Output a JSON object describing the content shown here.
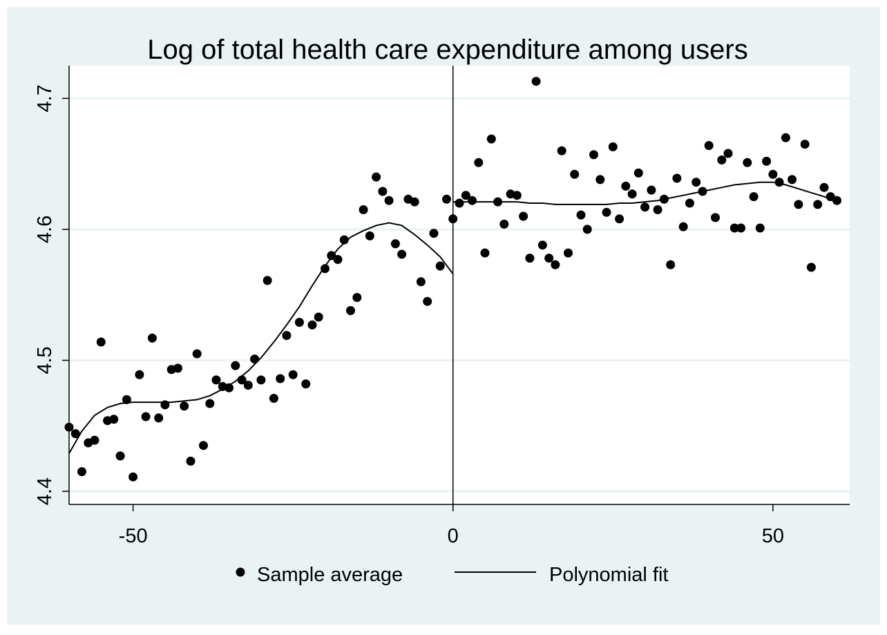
{
  "chart_data": {
    "type": "scatter",
    "title": "Log of total health care expenditure among users",
    "xlabel": "",
    "ylabel": "",
    "xlim": [
      -60,
      62
    ],
    "ylim": [
      4.39,
      4.725
    ],
    "xticks": [
      -50,
      0,
      50
    ],
    "xtick_labels": [
      "-50",
      "0",
      "50"
    ],
    "yticks": [
      4.4,
      4.5,
      4.6,
      4.7
    ],
    "ytick_labels": [
      "4.4",
      "4.5",
      "4.6",
      "4.7"
    ],
    "grid": "horizontal",
    "cutoff_line_x": 0,
    "legend_position": "bottom",
    "colors": {
      "frame_background": "#eaf2f3",
      "plot_background": "#ffffff",
      "gridline": "#eaf2f3",
      "marker": "#000000",
      "line": "#000000"
    },
    "series": [
      {
        "name": "Sample average",
        "type": "scatter",
        "x": [
          -60,
          -59,
          -58,
          -57,
          -56,
          -55,
          -54,
          -53,
          -52,
          -51,
          -50,
          -49,
          -48,
          -47,
          -46,
          -45,
          -44,
          -43,
          -42,
          -41,
          -40,
          -39,
          -38,
          -37,
          -36,
          -35,
          -34,
          -33,
          -32,
          -31,
          -30,
          -29,
          -28,
          -27,
          -26,
          -25,
          -24,
          -23,
          -22,
          -21,
          -20,
          -19,
          -18,
          -17,
          -16,
          -15,
          -14,
          -13,
          -12,
          -11,
          -10,
          -9,
          -8,
          -7,
          -6,
          -5,
          -4,
          -3,
          -2,
          -1,
          0,
          1,
          2,
          3,
          4,
          5,
          6,
          7,
          8,
          9,
          10,
          11,
          12,
          13,
          14,
          15,
          16,
          17,
          18,
          19,
          20,
          21,
          22,
          23,
          24,
          25,
          26,
          27,
          28,
          29,
          30,
          31,
          32,
          33,
          34,
          35,
          36,
          37,
          38,
          39,
          40,
          41,
          42,
          43,
          44,
          45,
          46,
          47,
          48,
          49,
          50,
          51,
          52,
          53,
          54,
          55,
          56,
          57,
          58,
          59,
          60
        ],
        "y": [
          4.449,
          4.444,
          4.415,
          4.437,
          4.439,
          4.514,
          4.454,
          4.455,
          4.427,
          4.47,
          4.411,
          4.489,
          4.457,
          4.517,
          4.456,
          4.466,
          4.493,
          4.494,
          4.465,
          4.423,
          4.505,
          4.435,
          4.467,
          4.485,
          4.48,
          4.479,
          4.496,
          4.485,
          4.481,
          4.501,
          4.485,
          4.561,
          4.471,
          4.486,
          4.519,
          4.489,
          4.529,
          4.482,
          4.527,
          4.533,
          4.57,
          4.58,
          4.577,
          4.592,
          4.538,
          4.548,
          4.615,
          4.595,
          4.64,
          4.629,
          4.622,
          4.589,
          4.581,
          4.623,
          4.621,
          4.56,
          4.545,
          4.597,
          4.572,
          4.623,
          4.608,
          4.62,
          4.626,
          4.622,
          4.651,
          4.582,
          4.669,
          4.621,
          4.604,
          4.627,
          4.626,
          4.61,
          4.578,
          4.713,
          4.588,
          4.578,
          4.573,
          4.66,
          4.582,
          4.642,
          4.611,
          4.6,
          4.657,
          4.638,
          4.613,
          4.663,
          4.608,
          4.633,
          4.627,
          4.643,
          4.617,
          4.63,
          4.615,
          4.623,
          4.573,
          4.639,
          4.602,
          4.62,
          4.636,
          4.629,
          4.664,
          4.609,
          4.653,
          4.658,
          4.601,
          4.601,
          4.651,
          4.625,
          4.601,
          4.652,
          4.642,
          4.636,
          4.67,
          4.638,
          4.619,
          4.665,
          4.571,
          4.619,
          4.632,
          4.625,
          4.622
        ]
      },
      {
        "name": "Polynomial fit",
        "type": "line",
        "segments": [
          {
            "x": [
              -60,
              -58,
              -56,
              -54,
              -52,
              -50,
              -48,
              -46,
              -44,
              -42,
              -40,
              -38,
              -36,
              -34,
              -32,
              -30,
              -28,
              -26,
              -24,
              -22,
              -20,
              -18,
              -16,
              -14,
              -12,
              -10,
              -8,
              -6,
              -4,
              -2,
              0
            ],
            "y": [
              4.429,
              4.446,
              4.458,
              4.464,
              4.467,
              4.468,
              4.468,
              4.468,
              4.468,
              4.469,
              4.47,
              4.473,
              4.478,
              4.484,
              4.492,
              4.502,
              4.514,
              4.527,
              4.541,
              4.557,
              4.572,
              4.585,
              4.594,
              4.599,
              4.603,
              4.605,
              4.603,
              4.596,
              4.588,
              4.579,
              4.566
            ]
          },
          {
            "x": [
              0,
              2,
              4,
              6,
              8,
              10,
              12,
              14,
              16,
              18,
              20,
              22,
              24,
              26,
              28,
              30,
              32,
              34,
              36,
              38,
              40,
              42,
              44,
              46,
              48,
              50,
              52,
              54,
              56,
              58,
              60
            ],
            "y": [
              4.621,
              4.621,
              4.621,
              4.621,
              4.621,
              4.621,
              4.62,
              4.62,
              4.619,
              4.619,
              4.619,
              4.619,
              4.619,
              4.62,
              4.62,
              4.621,
              4.622,
              4.624,
              4.626,
              4.628,
              4.63,
              4.632,
              4.634,
              4.635,
              4.636,
              4.636,
              4.634,
              4.631,
              4.628,
              4.625,
              4.622
            ]
          }
        ]
      }
    ]
  }
}
